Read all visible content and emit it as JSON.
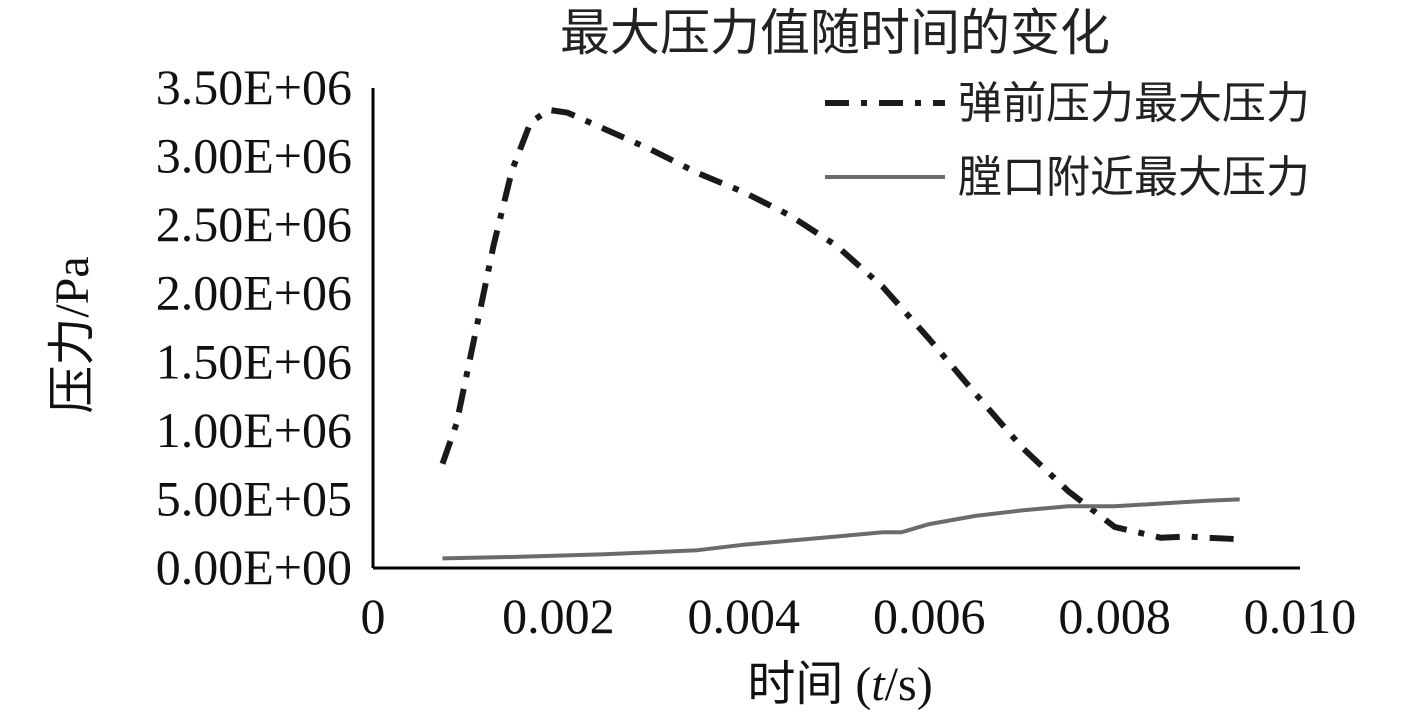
{
  "chart_data": {
    "type": "line",
    "title": "最大压力值随时间的变化",
    "xlabel_prefix": "时间 (",
    "xlabel_var": "t",
    "xlabel_suffix": "/s)",
    "ylabel": "压力/Pa",
    "xlim": [
      0,
      0.01
    ],
    "ylim": [
      0,
      3500000
    ],
    "x_ticks": [
      {
        "value": 0,
        "label": "0"
      },
      {
        "value": 0.002,
        "label": "0.002"
      },
      {
        "value": 0.004,
        "label": "0.004"
      },
      {
        "value": 0.006,
        "label": "0.006"
      },
      {
        "value": 0.008,
        "label": "0.008"
      },
      {
        "value": 0.01,
        "label": "0.010"
      }
    ],
    "y_ticks": [
      {
        "value": 0,
        "label": "0.00E+00"
      },
      {
        "value": 500000,
        "label": "5.00E+05"
      },
      {
        "value": 1000000,
        "label": "1.00E+06"
      },
      {
        "value": 1500000,
        "label": "1.50E+06"
      },
      {
        "value": 2000000,
        "label": "2.00E+06"
      },
      {
        "value": 2500000,
        "label": "2.50E+06"
      },
      {
        "value": 3000000,
        "label": "3.00E+06"
      },
      {
        "value": 3500000,
        "label": "3.50E+06"
      }
    ],
    "legend_position": "top-right",
    "grid": false,
    "series": [
      {
        "name": "弹前压力最大压力",
        "style": "dash-dot",
        "color": "#1a1a1a",
        "points": [
          [
            0.00075,
            760000
          ],
          [
            0.0009,
            1050000
          ],
          [
            0.0011,
            1700000
          ],
          [
            0.0013,
            2350000
          ],
          [
            0.0015,
            2900000
          ],
          [
            0.0017,
            3250000
          ],
          [
            0.0019,
            3340000
          ],
          [
            0.0021,
            3320000
          ],
          [
            0.0025,
            3200000
          ],
          [
            0.003,
            3050000
          ],
          [
            0.0035,
            2880000
          ],
          [
            0.004,
            2740000
          ],
          [
            0.0045,
            2570000
          ],
          [
            0.005,
            2350000
          ],
          [
            0.0055,
            2050000
          ],
          [
            0.006,
            1670000
          ],
          [
            0.0065,
            1270000
          ],
          [
            0.007,
            880000
          ],
          [
            0.0075,
            560000
          ],
          [
            0.008,
            300000
          ],
          [
            0.0085,
            220000
          ],
          [
            0.0088,
            230000
          ],
          [
            0.009,
            220000
          ],
          [
            0.00935,
            210000
          ]
        ]
      },
      {
        "name": "膛口附近最大压力",
        "style": "solid",
        "color": "#6b6b6b",
        "points": [
          [
            0.00075,
            70000
          ],
          [
            0.0015,
            80000
          ],
          [
            0.0025,
            100000
          ],
          [
            0.0035,
            130000
          ],
          [
            0.004,
            170000
          ],
          [
            0.0045,
            200000
          ],
          [
            0.005,
            230000
          ],
          [
            0.0055,
            260000
          ],
          [
            0.0057,
            260000
          ],
          [
            0.006,
            320000
          ],
          [
            0.0065,
            380000
          ],
          [
            0.007,
            420000
          ],
          [
            0.0075,
            450000
          ],
          [
            0.008,
            450000
          ],
          [
            0.0085,
            470000
          ],
          [
            0.009,
            490000
          ],
          [
            0.00935,
            500000
          ]
        ]
      }
    ]
  }
}
